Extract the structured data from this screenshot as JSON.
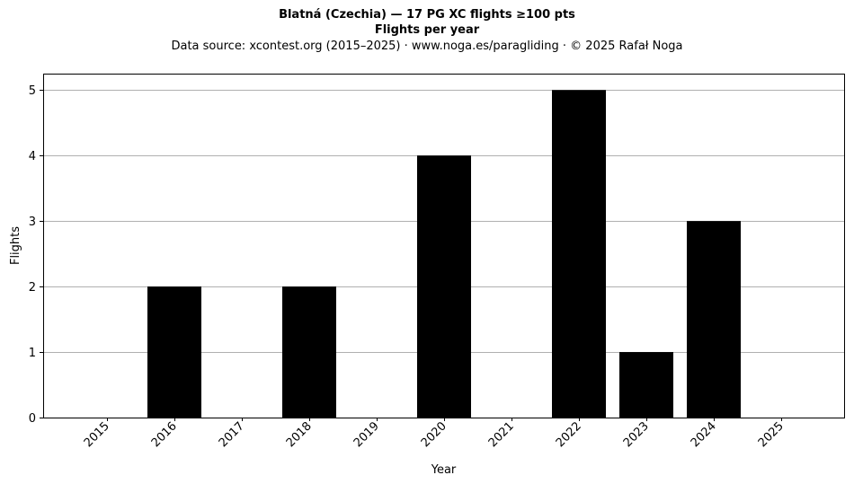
{
  "title": "Blatná (Czechia)  —  17 PG XC flights ≥100 pts",
  "subtitle": "Flights per year",
  "source": "Data source: xcontest.org (2015–2025)  ·  www.noga.es/paragliding  ·  © 2025 Rafał Noga",
  "chart_data": {
    "type": "bar",
    "categories": [
      "2015",
      "2016",
      "2017",
      "2018",
      "2019",
      "2020",
      "2021",
      "2022",
      "2023",
      "2024",
      "2025"
    ],
    "values": [
      0,
      2,
      0,
      2,
      0,
      4,
      0,
      5,
      1,
      3,
      0
    ],
    "xlabel": "Year",
    "ylabel": "Flights",
    "ylim": [
      0,
      5.25
    ],
    "yticks": [
      0,
      1,
      2,
      3,
      4,
      5
    ],
    "grid": "horizontal",
    "bar_color": "#000000",
    "grid_color": "#b0b0b0"
  }
}
